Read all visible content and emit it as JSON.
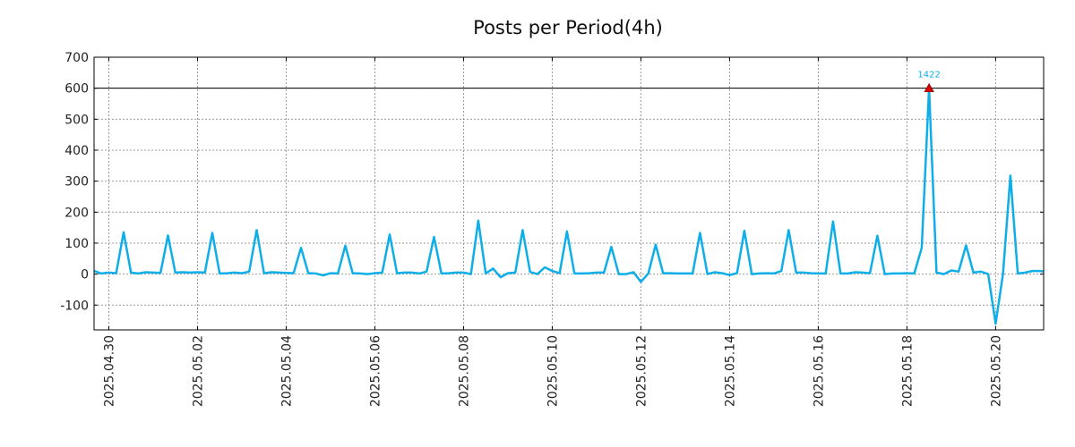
{
  "chart_data": {
    "type": "line",
    "title": "Posts per Period(4h)",
    "xlabel": "",
    "ylabel": "",
    "ylim": [
      -180,
      700
    ],
    "xlim": [
      "2025-04-29 16:00",
      "2025-05-21 02:00"
    ],
    "y_ticks": [
      {
        "value": 700,
        "label": "700"
      },
      {
        "value": 600,
        "label": "600"
      },
      {
        "value": 500,
        "label": "500"
      },
      {
        "value": 400,
        "label": "400"
      },
      {
        "value": 300,
        "label": "300"
      },
      {
        "value": 200,
        "label": "200"
      },
      {
        "value": 100,
        "label": "100"
      },
      {
        "value": 0,
        "label": "0"
      },
      {
        "value": -100,
        "label": "-100"
      }
    ],
    "x_ticks": [
      {
        "value": "2025-04-30 00:00",
        "label": "2025.04.30"
      },
      {
        "value": "2025-05-02 00:00",
        "label": "2025.05.02"
      },
      {
        "value": "2025-05-04 00:00",
        "label": "2025.05.04"
      },
      {
        "value": "2025-05-06 00:00",
        "label": "2025.05.06"
      },
      {
        "value": "2025-05-08 00:00",
        "label": "2025.05.08"
      },
      {
        "value": "2025-05-10 00:00",
        "label": "2025.05.10"
      },
      {
        "value": "2025-05-12 00:00",
        "label": "2025.05.12"
      },
      {
        "value": "2025-05-14 00:00",
        "label": "2025.05.14"
      },
      {
        "value": "2025-05-16 00:00",
        "label": "2025.05.16"
      },
      {
        "value": "2025-05-18 00:00",
        "label": "2025.05.18"
      },
      {
        "value": "2025-05-20 00:00",
        "label": "2025.05.20"
      }
    ],
    "grid": true,
    "reference_line": 600,
    "series": [
      {
        "color": "#0eaee8",
        "points": [
          [
            "2025-04-29 16:00",
            10
          ],
          [
            "2025-04-29 20:00",
            2
          ],
          [
            "2025-04-30 00:00",
            5
          ],
          [
            "2025-04-30 04:00",
            3
          ],
          [
            "2025-04-30 08:00",
            135
          ],
          [
            "2025-04-30 12:00",
            5
          ],
          [
            "2025-04-30 16:00",
            2
          ],
          [
            "2025-04-30 20:00",
            6
          ],
          [
            "2025-05-01 00:00",
            5
          ],
          [
            "2025-05-01 04:00",
            4
          ],
          [
            "2025-05-01 08:00",
            125
          ],
          [
            "2025-05-01 12:00",
            5
          ],
          [
            "2025-05-01 16:00",
            6
          ],
          [
            "2025-05-01 20:00",
            5
          ],
          [
            "2025-05-02 00:00",
            6
          ],
          [
            "2025-05-02 04:00",
            5
          ],
          [
            "2025-05-02 08:00",
            133
          ],
          [
            "2025-05-02 12:00",
            2
          ],
          [
            "2025-05-02 16:00",
            3
          ],
          [
            "2025-05-02 20:00",
            5
          ],
          [
            "2025-05-03 00:00",
            3
          ],
          [
            "2025-05-03 04:00",
            8
          ],
          [
            "2025-05-03 08:00",
            142
          ],
          [
            "2025-05-03 12:00",
            3
          ],
          [
            "2025-05-03 16:00",
            6
          ],
          [
            "2025-05-03 20:00",
            5
          ],
          [
            "2025-05-04 00:00",
            4
          ],
          [
            "2025-05-04 04:00",
            3
          ],
          [
            "2025-05-04 08:00",
            85
          ],
          [
            "2025-05-04 12:00",
            3
          ],
          [
            "2025-05-04 16:00",
            2
          ],
          [
            "2025-05-04 20:00",
            -4
          ],
          [
            "2025-05-05 00:00",
            3
          ],
          [
            "2025-05-05 04:00",
            2
          ],
          [
            "2025-05-05 08:00",
            92
          ],
          [
            "2025-05-05 12:00",
            3
          ],
          [
            "2025-05-05 16:00",
            2
          ],
          [
            "2025-05-05 20:00",
            0
          ],
          [
            "2025-05-06 00:00",
            3
          ],
          [
            "2025-05-06 04:00",
            5
          ],
          [
            "2025-05-06 08:00",
            128
          ],
          [
            "2025-05-06 12:00",
            3
          ],
          [
            "2025-05-06 16:00",
            5
          ],
          [
            "2025-05-06 20:00",
            5
          ],
          [
            "2025-05-07 00:00",
            2
          ],
          [
            "2025-05-07 04:00",
            8
          ],
          [
            "2025-05-07 08:00",
            120
          ],
          [
            "2025-05-07 12:00",
            2
          ],
          [
            "2025-05-07 16:00",
            3
          ],
          [
            "2025-05-07 20:00",
            5
          ],
          [
            "2025-05-08 00:00",
            5
          ],
          [
            "2025-05-08 04:00",
            0
          ],
          [
            "2025-05-08 08:00",
            173
          ],
          [
            "2025-05-08 12:00",
            2
          ],
          [
            "2025-05-08 16:00",
            18
          ],
          [
            "2025-05-08 20:00",
            -10
          ],
          [
            "2025-05-09 00:00",
            3
          ],
          [
            "2025-05-09 04:00",
            5
          ],
          [
            "2025-05-09 08:00",
            142
          ],
          [
            "2025-05-09 12:00",
            7
          ],
          [
            "2025-05-09 16:00",
            0
          ],
          [
            "2025-05-09 20:00",
            22
          ],
          [
            "2025-05-10 00:00",
            10
          ],
          [
            "2025-05-10 04:00",
            3
          ],
          [
            "2025-05-10 08:00",
            138
          ],
          [
            "2025-05-10 12:00",
            2
          ],
          [
            "2025-05-10 16:00",
            2
          ],
          [
            "2025-05-10 20:00",
            3
          ],
          [
            "2025-05-11 00:00",
            5
          ],
          [
            "2025-05-11 04:00",
            5
          ],
          [
            "2025-05-11 08:00",
            88
          ],
          [
            "2025-05-11 12:00",
            0
          ],
          [
            "2025-05-11 16:00",
            0
          ],
          [
            "2025-05-11 20:00",
            6
          ],
          [
            "2025-05-12 00:00",
            -25
          ],
          [
            "2025-05-12 04:00",
            2
          ],
          [
            "2025-05-12 08:00",
            95
          ],
          [
            "2025-05-12 12:00",
            3
          ],
          [
            "2025-05-12 16:00",
            3
          ],
          [
            "2025-05-12 20:00",
            2
          ],
          [
            "2025-05-13 00:00",
            2
          ],
          [
            "2025-05-13 04:00",
            2
          ],
          [
            "2025-05-13 08:00",
            133
          ],
          [
            "2025-05-13 12:00",
            0
          ],
          [
            "2025-05-13 16:00",
            6
          ],
          [
            "2025-05-13 20:00",
            3
          ],
          [
            "2025-05-14 00:00",
            -3
          ],
          [
            "2025-05-14 04:00",
            3
          ],
          [
            "2025-05-14 08:00",
            140
          ],
          [
            "2025-05-14 12:00",
            0
          ],
          [
            "2025-05-14 16:00",
            2
          ],
          [
            "2025-05-14 20:00",
            3
          ],
          [
            "2025-05-15 00:00",
            2
          ],
          [
            "2025-05-15 04:00",
            10
          ],
          [
            "2025-05-15 08:00",
            142
          ],
          [
            "2025-05-15 12:00",
            5
          ],
          [
            "2025-05-15 16:00",
            5
          ],
          [
            "2025-05-15 20:00",
            3
          ],
          [
            "2025-05-16 00:00",
            2
          ],
          [
            "2025-05-16 04:00",
            2
          ],
          [
            "2025-05-16 08:00",
            170
          ],
          [
            "2025-05-16 12:00",
            2
          ],
          [
            "2025-05-16 16:00",
            2
          ],
          [
            "2025-05-16 20:00",
            6
          ],
          [
            "2025-05-17 00:00",
            5
          ],
          [
            "2025-05-17 04:00",
            3
          ],
          [
            "2025-05-17 08:00",
            124
          ],
          [
            "2025-05-17 12:00",
            0
          ],
          [
            "2025-05-17 16:00",
            2
          ],
          [
            "2025-05-17 20:00",
            2
          ],
          [
            "2025-05-18 00:00",
            3
          ],
          [
            "2025-05-18 04:00",
            2
          ],
          [
            "2025-05-18 08:00",
            85
          ],
          [
            "2025-05-18 12:00",
            600
          ],
          [
            "2025-05-18 16:00",
            5
          ],
          [
            "2025-05-18 20:00",
            0
          ],
          [
            "2025-05-19 00:00",
            12
          ],
          [
            "2025-05-19 04:00",
            8
          ],
          [
            "2025-05-19 08:00",
            93
          ],
          [
            "2025-05-19 12:00",
            5
          ],
          [
            "2025-05-19 16:00",
            8
          ],
          [
            "2025-05-19 20:00",
            0
          ],
          [
            "2025-05-20 00:00",
            -160
          ],
          [
            "2025-05-20 04:00",
            0
          ],
          [
            "2025-05-20 08:00",
            318
          ],
          [
            "2025-05-20 12:00",
            2
          ],
          [
            "2025-05-20 16:00",
            5
          ],
          [
            "2025-05-20 20:00",
            10
          ],
          [
            "2025-05-21 00:00",
            10
          ],
          [
            "2025-05-21 02:00",
            8
          ]
        ]
      }
    ],
    "annotations": [
      {
        "x": "2025-05-18 12:00",
        "y": 600,
        "label": "1422",
        "marker": "triangle",
        "marker_color": "#e00000",
        "label_color": "#0eaee8"
      }
    ]
  }
}
